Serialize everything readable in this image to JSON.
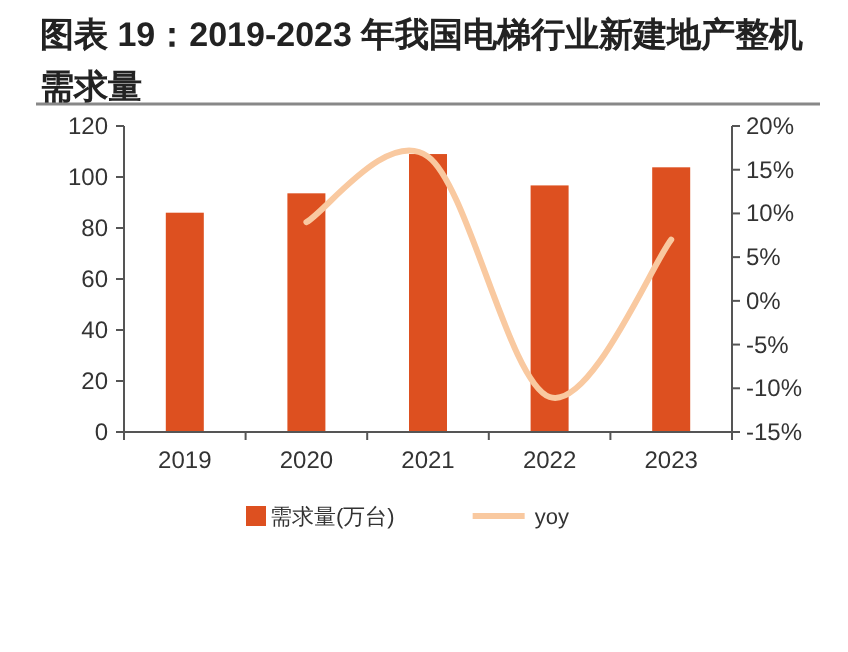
{
  "chart_data": {
    "type": "bar",
    "title": "图表 19：2019-2023 年我国电梯行业新建地产整机需求量",
    "categories": [
      "2019",
      "2020",
      "2021",
      "2022",
      "2023"
    ],
    "series": [
      {
        "name": "需求量(万台)",
        "color": "#dd5020",
        "values": [
          86,
          93.6,
          109,
          96.7,
          103.8
        ]
      },
      {
        "name": "yoy",
        "type": "line",
        "axis": "y2",
        "color": "#f9c9a0",
        "values": [
          null,
          9,
          16.5,
          -11,
          7
        ]
      }
    ],
    "ylim": [
      0,
      120
    ],
    "yticks": [
      0,
      20,
      40,
      60,
      80,
      100,
      120
    ],
    "y2lim": [
      -15,
      20
    ],
    "y2ticks": [
      {
        "value": -15,
        "label": "-15%"
      },
      {
        "value": -10,
        "label": "-10%"
      },
      {
        "value": -5,
        "label": "-5%"
      },
      {
        "value": 0,
        "label": "0%"
      },
      {
        "value": 5,
        "label": "5%"
      },
      {
        "value": 10,
        "label": "10%"
      },
      {
        "value": 15,
        "label": "15%"
      },
      {
        "value": 20,
        "label": "20%"
      }
    ],
    "legend": "bottom",
    "grid": false,
    "marker": "none",
    "line_style": "solid"
  }
}
